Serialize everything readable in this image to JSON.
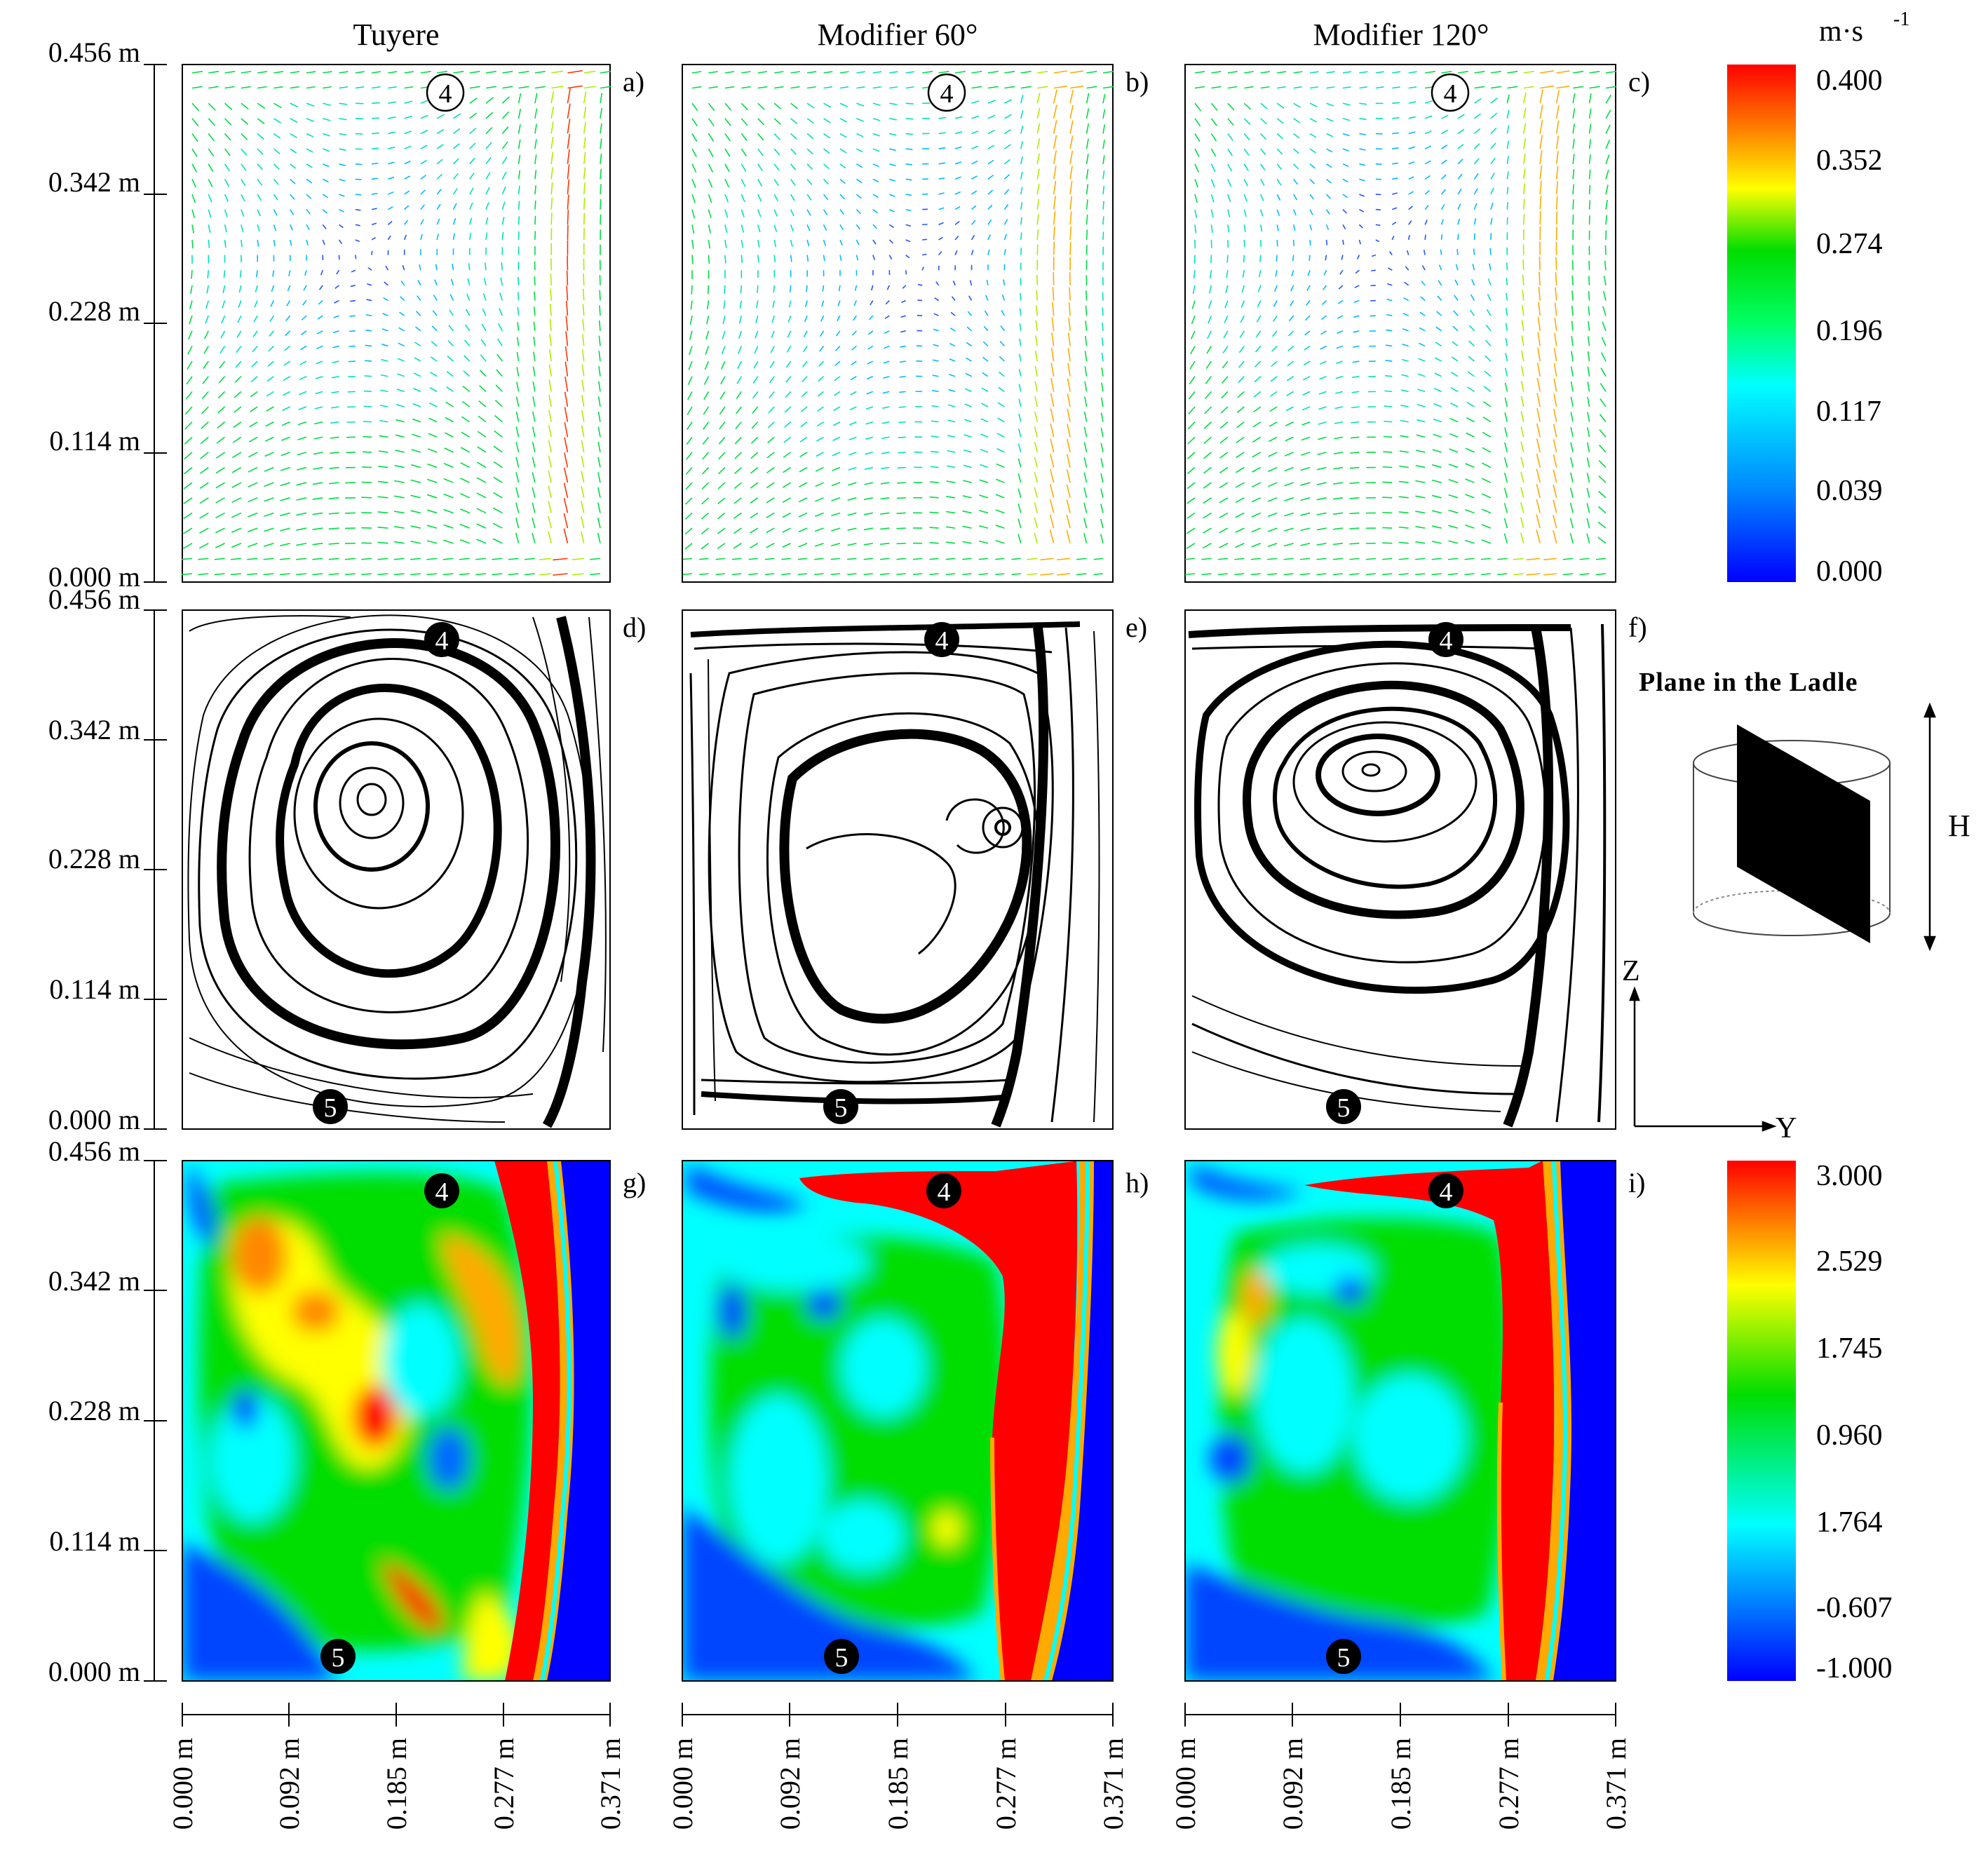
{
  "figure": {
    "column_titles": [
      "Tuyere",
      "Modifier 60°",
      "Modifier 120°"
    ],
    "panel_letters": [
      "a)",
      "b)",
      "c)",
      "d)",
      "e)",
      "f)",
      "g)",
      "h)",
      "i)"
    ],
    "y_axis_ticks": [
      "0.456 m",
      "0.342 m",
      "0.228 m",
      "0.114 m",
      "0.000 m"
    ],
    "x_axis_ticks": [
      "0.000 m",
      "0.092 m",
      "0.185 m",
      "0.277 m",
      "0.371 m"
    ],
    "markers": {
      "top": "4",
      "bottom": "5"
    },
    "velocity_colorbar": {
      "unit": "m·s",
      "unit_exponent": "-1",
      "ticks": [
        "0.400",
        "0.352",
        "0.274",
        "0.196",
        "0.117",
        "0.039",
        "0.000"
      ],
      "colors": [
        "#ff0000",
        "#ffaa00",
        "#ffff00",
        "#00dd00",
        "#00ff88",
        "#00ffff",
        "#0088ff",
        "#0000ff"
      ]
    },
    "contour_colorbar": {
      "ticks": [
        "3.000",
        "2.529",
        "1.745",
        "0.960",
        "1.764",
        "-0.607",
        "-1.000"
      ],
      "colors": [
        "#ff0000",
        "#ffff00",
        "#00dd00",
        "#00ffff",
        "#0000ff"
      ]
    },
    "ladle_schematic": {
      "title": "Plane in the Ladle",
      "height_label": "H"
    },
    "axes_indicator": {
      "vertical": "Z",
      "horizontal": "Y"
    }
  }
}
